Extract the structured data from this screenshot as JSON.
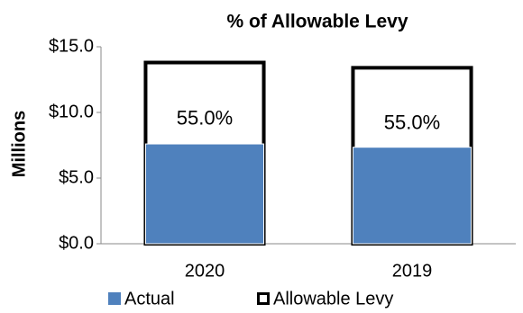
{
  "chart_data": {
    "type": "overlap-bar",
    "title": "% of Allowable Levy",
    "y_label": "Millions",
    "categories": [
      "2020",
      "2019"
    ],
    "series": [
      {
        "name": "Allowable Levy",
        "color": "#ffffff",
        "stroke": "#000000",
        "values": [
          13.8,
          13.4
        ]
      },
      {
        "name": "Actual",
        "color": "#4f81bd",
        "values": [
          7.6,
          7.35
        ]
      }
    ],
    "bar_annotations": [
      "55.0%",
      "55.0%"
    ],
    "ylim": [
      0,
      15
    ],
    "yticks": [
      {
        "value": 0,
        "label": "$0.0"
      },
      {
        "value": 5,
        "label": "$5.0"
      },
      {
        "value": 10,
        "label": "$10.0"
      },
      {
        "value": 15,
        "label": "$15.0"
      }
    ],
    "legend_order": [
      1,
      0
    ],
    "legend": "bottom"
  }
}
